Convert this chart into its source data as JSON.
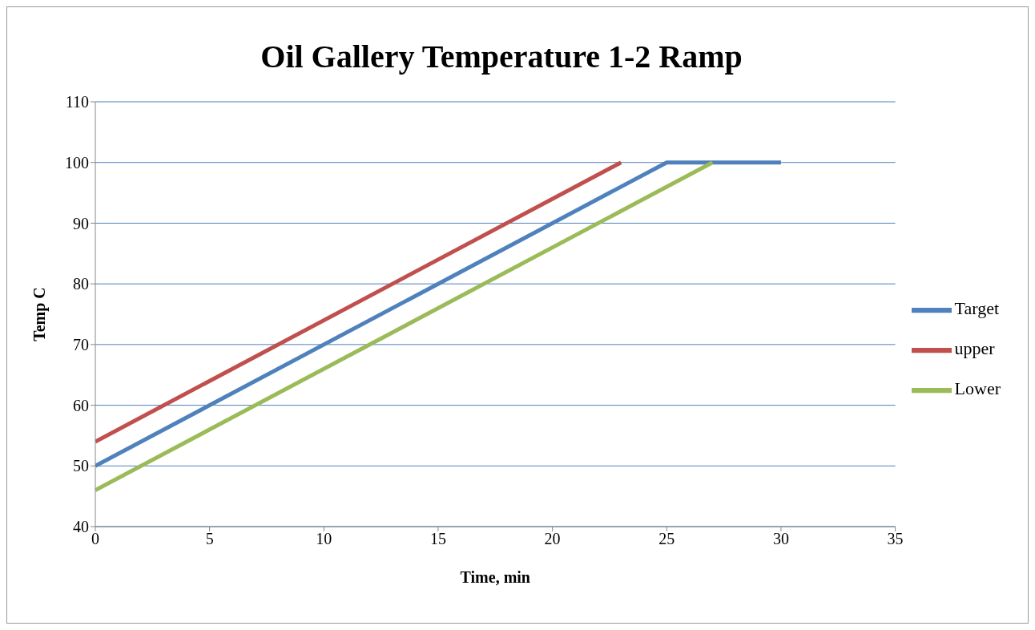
{
  "chart_data": {
    "type": "line",
    "title": "Oil Gallery Temperature 1-2 Ramp",
    "xlabel": "Time, min",
    "ylabel": "Temp  C",
    "series": [
      {
        "name": "Target",
        "color": "#4f81bd",
        "x": [
          0,
          25,
          30
        ],
        "values": [
          50,
          100,
          100
        ]
      },
      {
        "name": "upper",
        "color": "#c0504d",
        "x": [
          0,
          23
        ],
        "values": [
          54,
          100
        ]
      },
      {
        "name": "Lower",
        "color": "#9bbb59",
        "x": [
          0,
          27
        ],
        "values": [
          46,
          100
        ]
      }
    ],
    "xlim": [
      0,
      35
    ],
    "xticks": [
      0,
      5,
      10,
      15,
      20,
      25,
      30,
      35
    ],
    "ylim": [
      40,
      110
    ],
    "yticks": [
      40,
      50,
      60,
      70,
      80,
      90,
      100,
      110
    ],
    "grid": "y",
    "legend": "right",
    "marker": "none",
    "line_style": "solid"
  }
}
